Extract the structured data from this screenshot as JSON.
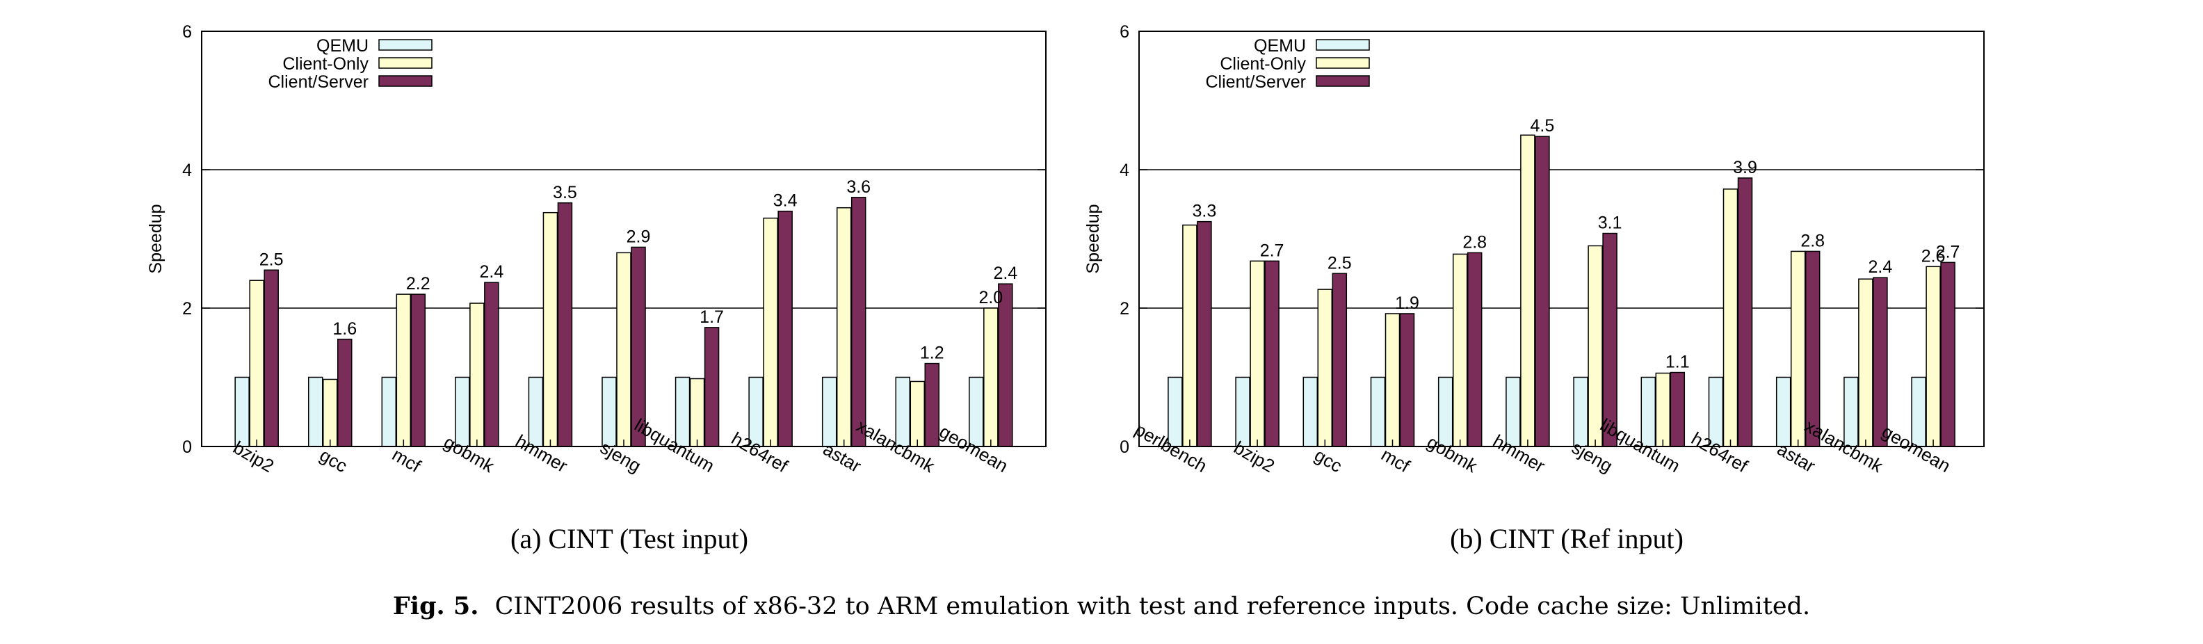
{
  "colors": {
    "QEMU": "#dff6f8",
    "Client-Only": "#fdfdcf",
    "Client/Server": "#7b2d5a"
  },
  "chart_data": [
    {
      "type": "bar",
      "categories": [
        "bzip2",
        "gcc",
        "mcf",
        "gobmk",
        "hmmer",
        "sjeng",
        "libquantum",
        "h264ref",
        "astar",
        "xalancbmk",
        "geomean"
      ],
      "series": [
        {
          "name": "QEMU",
          "values": [
            1,
            1,
            1,
            1,
            1,
            1,
            1,
            1,
            1,
            1,
            1
          ]
        },
        {
          "name": "Client-Only",
          "values": [
            2.4,
            0.97,
            2.2,
            2.07,
            3.38,
            2.8,
            0.98,
            3.3,
            3.45,
            0.94,
            2.0
          ]
        },
        {
          "name": "Client/Server",
          "values": [
            2.55,
            1.55,
            2.2,
            2.37,
            3.52,
            2.88,
            1.72,
            3.4,
            3.6,
            1.2,
            2.35
          ]
        }
      ],
      "data_labels": [
        {
          "category": "bzip2",
          "series": "Client/Server",
          "text": "2.5"
        },
        {
          "category": "gcc",
          "series": "Client/Server",
          "text": "1.6"
        },
        {
          "category": "mcf",
          "series": "Client/Server",
          "text": "2.2"
        },
        {
          "category": "gobmk",
          "series": "Client/Server",
          "text": "2.4"
        },
        {
          "category": "hmmer",
          "series": "Client/Server",
          "text": "3.5"
        },
        {
          "category": "sjeng",
          "series": "Client/Server",
          "text": "2.9"
        },
        {
          "category": "libquantum",
          "series": "Client/Server",
          "text": "1.7"
        },
        {
          "category": "h264ref",
          "series": "Client/Server",
          "text": "3.4"
        },
        {
          "category": "astar",
          "series": "Client/Server",
          "text": "3.6"
        },
        {
          "category": "xalancbmk",
          "series": "Client/Server",
          "text": "1.2"
        },
        {
          "category": "geomean",
          "series": "Client-Only",
          "text": "2.0"
        },
        {
          "category": "geomean",
          "series": "Client/Server",
          "text": "2.4"
        }
      ],
      "ylabel": "Speedup",
      "xlabel": "",
      "ylim": [
        0,
        6
      ],
      "yticks": [
        0,
        2,
        4,
        6
      ],
      "grid": "horizontal",
      "legend": "top-left",
      "caption": "(a) CINT (Test input)"
    },
    {
      "type": "bar",
      "categories": [
        "perlbench",
        "bzip2",
        "gcc",
        "mcf",
        "gobmk",
        "hmmer",
        "sjeng",
        "libquantum",
        "h264ref",
        "astar",
        "xalancbmk",
        "geomean"
      ],
      "series": [
        {
          "name": "QEMU",
          "values": [
            1,
            1,
            1,
            1,
            1,
            1,
            1,
            1,
            1,
            1,
            1,
            1
          ]
        },
        {
          "name": "Client-Only",
          "values": [
            3.2,
            2.68,
            2.27,
            1.92,
            2.78,
            4.5,
            2.9,
            1.06,
            3.72,
            2.82,
            2.42,
            2.6
          ]
        },
        {
          "name": "Client/Server",
          "values": [
            3.25,
            2.68,
            2.5,
            1.92,
            2.8,
            4.48,
            3.08,
            1.07,
            3.88,
            2.82,
            2.44,
            2.66
          ]
        }
      ],
      "data_labels": [
        {
          "category": "perlbench",
          "series": "Client/Server",
          "text": "3.3"
        },
        {
          "category": "bzip2",
          "series": "Client/Server",
          "text": "2.7"
        },
        {
          "category": "gcc",
          "series": "Client/Server",
          "text": "2.5"
        },
        {
          "category": "mcf",
          "series": "Client/Server",
          "text": "1.9"
        },
        {
          "category": "gobmk",
          "series": "Client/Server",
          "text": "2.8"
        },
        {
          "category": "hmmer",
          "series": "Client/Server",
          "text": "4.5"
        },
        {
          "category": "sjeng",
          "series": "Client/Server",
          "text": "3.1"
        },
        {
          "category": "libquantum",
          "series": "Client/Server",
          "text": "1.1"
        },
        {
          "category": "h264ref",
          "series": "Client/Server",
          "text": "3.9"
        },
        {
          "category": "astar",
          "series": "Client/Server",
          "text": "2.8"
        },
        {
          "category": "xalancbmk",
          "series": "Client/Server",
          "text": "2.4"
        },
        {
          "category": "geomean",
          "series": "Client-Only",
          "text": "2.6"
        },
        {
          "category": "geomean",
          "series": "Client/Server",
          "text": "2.7"
        }
      ],
      "ylabel": "Speedup",
      "xlabel": "",
      "ylim": [
        0,
        6
      ],
      "yticks": [
        0,
        2,
        4,
        6
      ],
      "grid": "horizontal",
      "legend": "top-left",
      "caption": "(b) CINT (Ref input)"
    }
  ],
  "figure_caption": {
    "label": "Fig. 5.",
    "text": "CINT2006 results of x86-32 to ARM emulation with test and reference inputs. Code cache size: Unlimited."
  }
}
